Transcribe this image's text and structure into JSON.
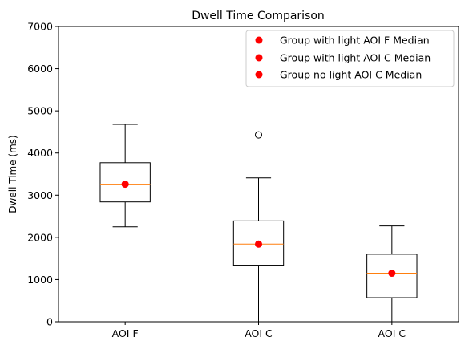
{
  "chart_data": {
    "type": "box",
    "title": "Dwell Time Comparison",
    "xlabel": "",
    "ylabel": "Dwell Time (ms)",
    "ylim": [
      0,
      7000
    ],
    "yticks": [
      "0",
      "1000",
      "2000",
      "3000",
      "4000",
      "5000",
      "6000",
      "7000"
    ],
    "categories": [
      "AOI F",
      "AOI C",
      "AOI C"
    ],
    "boxes": [
      {
        "category": "AOI F",
        "whisker_low": 2250,
        "q1": 2840,
        "median": 3260,
        "q3": 3770,
        "whisker_high": 4680,
        "outliers": []
      },
      {
        "category": "AOI C",
        "whisker_low": 0,
        "q1": 1340,
        "median": 1840,
        "q3": 2390,
        "whisker_high": 3410,
        "outliers": [
          4430
        ]
      },
      {
        "category": "AOI C",
        "whisker_low": 0,
        "q1": 570,
        "median": 1150,
        "q3": 1600,
        "whisker_high": 2270,
        "outliers": []
      }
    ],
    "median_markers": [
      {
        "label": "Group with light AOI F Median",
        "value": 3260,
        "color": "#ff0000"
      },
      {
        "label": "Group with light AOI C Median",
        "value": 1840,
        "color": "#ff0000"
      },
      {
        "label": "Group no light  AOI C Median",
        "value": 1150,
        "color": "#ff0000"
      }
    ],
    "median_line_color": "#ff7f0e",
    "legend_position": "top-right",
    "grid": false
  }
}
